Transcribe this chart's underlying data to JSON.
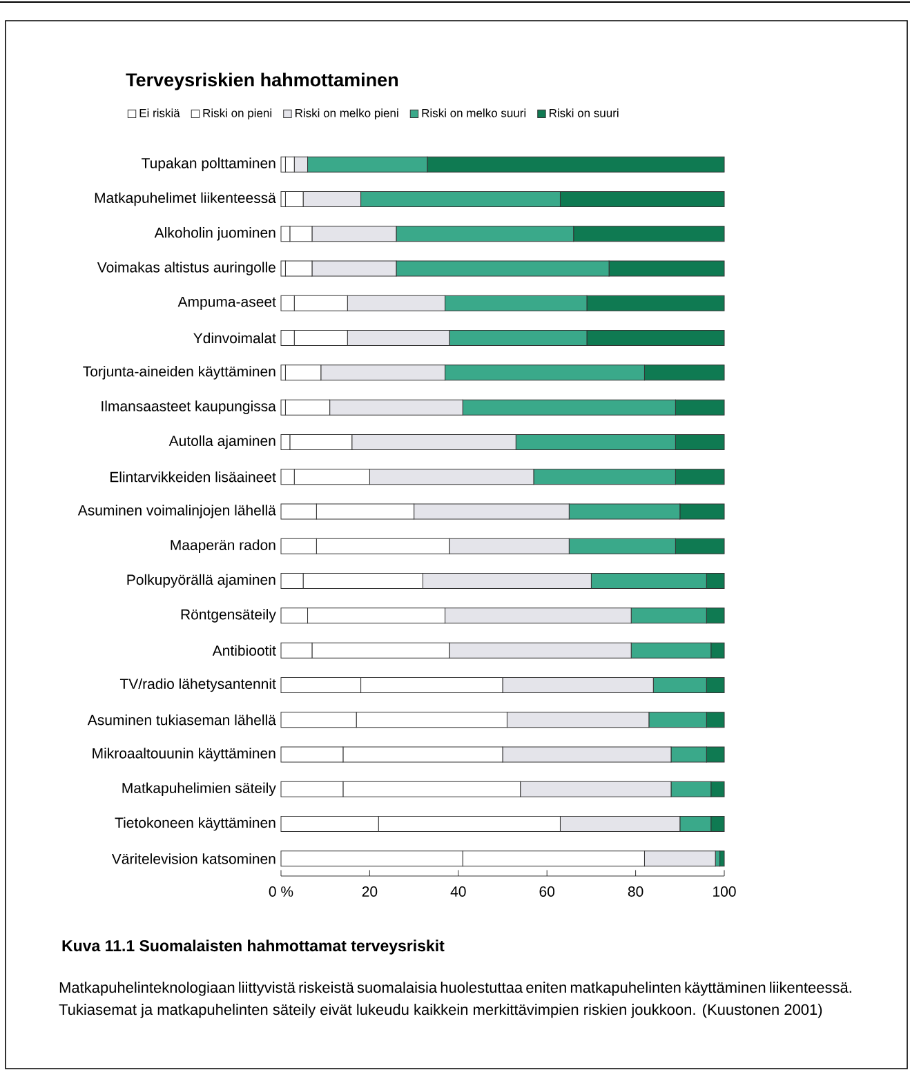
{
  "chart_data": {
    "type": "bar",
    "orientation": "horizontal",
    "stacked": true,
    "title": "Terveysriskien hahmottaminen",
    "categories": [
      "Tupakan polttaminen",
      "Matkapuhelimet liikenteessä",
      "Alkoholin juominen",
      "Voimakas altistus auringolle",
      "Ampuma-aseet",
      "Ydinvoimalat",
      "Torjunta-aineiden käyttäminen",
      "Ilmansaasteet kaupungissa",
      "Autolla ajaminen",
      "Elintarvikkeiden lisäaineet",
      "Asuminen voimalinjojen lähellä",
      "Maaperän radon",
      "Polkupyörällä ajaminen",
      "Röntgensäteily",
      "Antibiootit",
      "TV/radio lähetysantennit",
      "Asuminen tukiaseman lähellä",
      "Mikroaaltouunin käyttäminen",
      "Matkapuhelimien säteily",
      "Tietokoneen käyttäminen",
      "Väritelevision katsominen"
    ],
    "series": [
      {
        "name": "Ei riskiä",
        "color": "#ffffff",
        "values": [
          1,
          1,
          2,
          1,
          3,
          3,
          1,
          1,
          2,
          3,
          8,
          8,
          5,
          6,
          7,
          18,
          17,
          14,
          14,
          22,
          41
        ]
      },
      {
        "name": "Riski on pieni",
        "color": "#ffffff",
        "values": [
          2,
          4,
          5,
          6,
          12,
          12,
          8,
          10,
          14,
          17,
          22,
          30,
          27,
          31,
          31,
          32,
          34,
          36,
          40,
          41,
          41
        ]
      },
      {
        "name": "Riski on melko pieni",
        "color": "#e4e4ea",
        "values": [
          3,
          13,
          19,
          19,
          22,
          23,
          28,
          30,
          37,
          37,
          35,
          27,
          38,
          42,
          41,
          34,
          32,
          38,
          34,
          27,
          16
        ]
      },
      {
        "name": "Riski on melko suuri",
        "color": "#3aa98a",
        "values": [
          27,
          45,
          40,
          48,
          32,
          31,
          45,
          48,
          36,
          32,
          25,
          24,
          26,
          17,
          18,
          12,
          13,
          8,
          9,
          7,
          1
        ]
      },
      {
        "name": "Riski on suuri",
        "color": "#0f7a52",
        "values": [
          67,
          37,
          34,
          26,
          31,
          31,
          18,
          11,
          11,
          11,
          10,
          11,
          4,
          4,
          3,
          4,
          4,
          4,
          3,
          3,
          1
        ]
      }
    ],
    "xlim": [
      0,
      100
    ],
    "xticks": [
      {
        "value": 0,
        "label": "0 %"
      },
      20,
      40,
      60,
      80,
      100
    ],
    "legend": "top left",
    "annotations": [
      "Kuva 11.1 Suomalaisten hahmottamat terveysriskit",
      "Matkapuhelinteknologiaan liittyvistä riskeistä suomalaisia huolestuttaa eniten matkapuhelinten käyttäminen liikenteessä. Tukiasemat ja matkapuhelinten säteily eivät lukeudu kaikkein merkittävimpien riskien joukkoon. (Kuustonen 2001)"
    ]
  }
}
